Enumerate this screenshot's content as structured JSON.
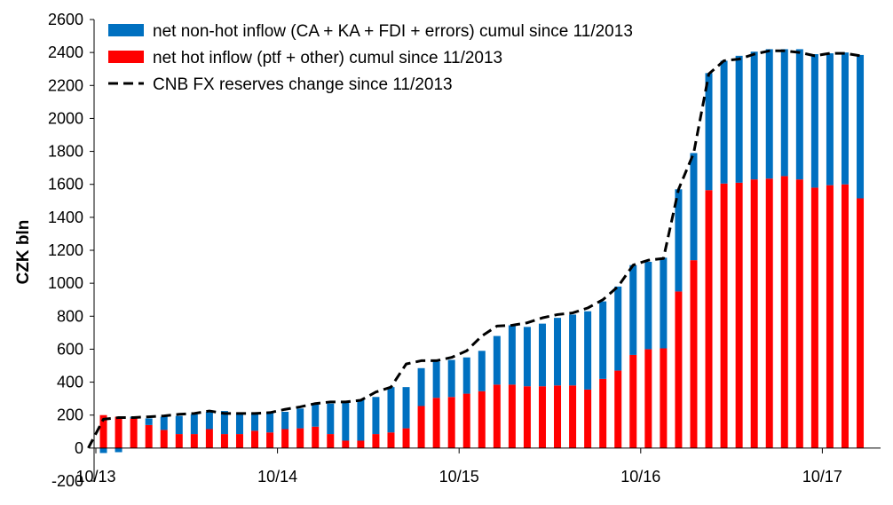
{
  "chart_data": {
    "type": "bar",
    "stacked": true,
    "title": "",
    "xlabel": "",
    "ylabel": "CZK bln",
    "ylim": [
      -200,
      2600
    ],
    "yticks": [
      -200,
      0,
      200,
      400,
      600,
      800,
      1000,
      1200,
      1400,
      1600,
      1800,
      2000,
      2200,
      2400,
      2600
    ],
    "xtick_labels": [
      "10/13",
      "10/14",
      "10/15",
      "10/16",
      "10/17"
    ],
    "xtick_month_index": [
      0,
      12,
      24,
      36,
      48
    ],
    "grid": false,
    "legend_position": "top-left",
    "categories": [
      "11/13",
      "12/13",
      "01/14",
      "02/14",
      "03/14",
      "04/14",
      "05/14",
      "06/14",
      "07/14",
      "08/14",
      "09/14",
      "10/14",
      "11/14",
      "12/14",
      "01/15",
      "02/15",
      "03/15",
      "04/15",
      "05/15",
      "06/15",
      "07/15",
      "08/15",
      "09/15",
      "10/15",
      "11/15",
      "12/15",
      "01/16",
      "02/16",
      "03/16",
      "04/16",
      "05/16",
      "06/16",
      "07/16",
      "08/16",
      "09/16",
      "10/16",
      "11/16",
      "12/16",
      "01/17",
      "02/17",
      "03/17",
      "04/17",
      "05/17",
      "06/17",
      "07/17",
      "08/17",
      "09/17",
      "10/17",
      "11/17",
      "12/17",
      "01/18"
    ],
    "series": [
      {
        "name": "net hot inflow (ptf + other) cumul since 11/2013",
        "color": "#ff0000",
        "values": [
          200,
          190,
          180,
          140,
          110,
          85,
          85,
          115,
          85,
          85,
          105,
          95,
          115,
          120,
          130,
          85,
          45,
          45,
          85,
          95,
          120,
          255,
          305,
          310,
          330,
          345,
          385,
          385,
          375,
          375,
          380,
          380,
          355,
          420,
          470,
          565,
          600,
          605,
          950,
          1140,
          1565,
          1605,
          1610,
          1630,
          1635,
          1650,
          1630,
          1580,
          1595,
          1600,
          1515
        ]
      },
      {
        "name": "net non-hot inflow (CA + KA + FDI + errors) cumul since 11/2013",
        "color": "#0070c0",
        "values": [
          -30,
          -25,
          10,
          40,
          80,
          110,
          120,
          105,
          140,
          125,
          105,
          120,
          105,
          120,
          135,
          185,
          235,
          250,
          225,
          275,
          250,
          230,
          220,
          225,
          220,
          245,
          295,
          360,
          360,
          380,
          410,
          430,
          475,
          470,
          510,
          545,
          530,
          550,
          620,
          650,
          710,
          745,
          770,
          775,
          785,
          770,
          790,
          810,
          800,
          800,
          870
        ]
      }
    ],
    "line_series": {
      "name": "CNB FX reserves change since 11/2013",
      "color": "#000000",
      "dash": true,
      "x_start_index": -1,
      "values": [
        0,
        175,
        185,
        185,
        190,
        195,
        205,
        210,
        225,
        210,
        210,
        210,
        215,
        235,
        250,
        270,
        280,
        280,
        290,
        340,
        370,
        510,
        530,
        530,
        550,
        590,
        680,
        740,
        745,
        760,
        790,
        810,
        820,
        850,
        900,
        980,
        1110,
        1140,
        1150,
        1570,
        1790,
        2270,
        2350,
        2360,
        2390,
        2410,
        2410,
        2400,
        2380,
        2395,
        2395,
        2380
      ]
    }
  }
}
